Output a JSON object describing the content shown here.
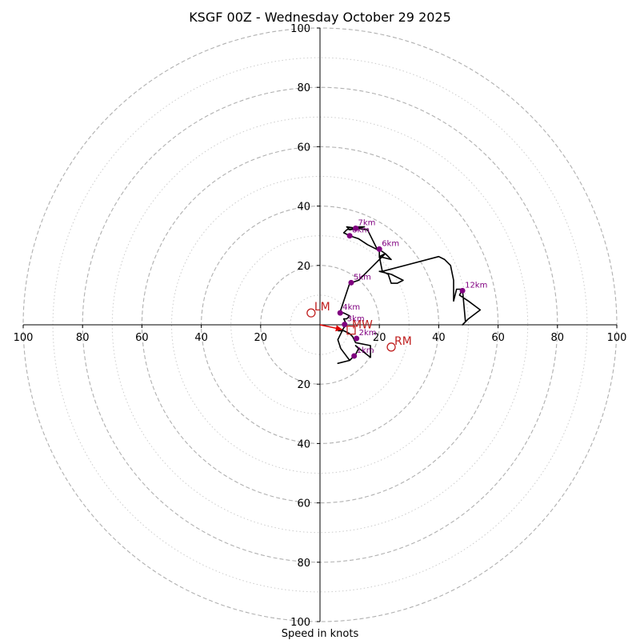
{
  "chart_data": {
    "type": "hodograph",
    "title": "KSGF 00Z - Wednesday October 29 2025",
    "xlabel": "Speed in knots",
    "units": "knots",
    "range": [
      -100,
      100
    ],
    "ring_major": [
      20,
      40,
      60,
      80,
      100
    ],
    "ring_minor": [
      10,
      30,
      50,
      70,
      90
    ],
    "x_ticks": [
      {
        "value": -100,
        "label": "100"
      },
      {
        "value": -80,
        "label": "80"
      },
      {
        "value": -60,
        "label": "60"
      },
      {
        "value": -40,
        "label": "40"
      },
      {
        "value": -20,
        "label": "20"
      },
      {
        "value": 20,
        "label": "20"
      },
      {
        "value": 40,
        "label": "40"
      },
      {
        "value": 60,
        "label": "60"
      },
      {
        "value": 80,
        "label": "80"
      },
      {
        "value": 100,
        "label": "100"
      }
    ],
    "y_ticks": [
      {
        "value": 100,
        "label": "100"
      },
      {
        "value": 80,
        "label": "80"
      },
      {
        "value": 60,
        "label": "60"
      },
      {
        "value": 40,
        "label": "40"
      },
      {
        "value": 20,
        "label": "20"
      },
      {
        "value": -20,
        "label": "20"
      },
      {
        "value": -40,
        "label": "40"
      },
      {
        "value": -60,
        "label": "60"
      },
      {
        "value": -80,
        "label": "80"
      },
      {
        "value": -100,
        "label": "100"
      }
    ],
    "hodograph_trace": [
      [
        6,
        -2
      ],
      [
        8,
        -2
      ],
      [
        10,
        -3
      ],
      [
        11,
        -4
      ],
      [
        12,
        -6
      ],
      [
        17,
        -7
      ],
      [
        17,
        -8
      ],
      [
        17,
        -11
      ],
      [
        12,
        -7
      ],
      [
        13,
        -8
      ],
      [
        12,
        -10
      ],
      [
        11,
        -11
      ],
      [
        10,
        -12
      ],
      [
        6,
        -13
      ],
      [
        10,
        -12
      ],
      [
        7,
        -8
      ],
      [
        6,
        -5
      ],
      [
        7,
        -3
      ],
      [
        8,
        -1
      ],
      [
        9,
        0
      ],
      [
        8,
        2
      ],
      [
        9,
        2
      ],
      [
        10,
        3
      ],
      [
        8,
        4
      ],
      [
        7,
        4
      ],
      [
        7,
        5
      ],
      [
        8,
        8
      ],
      [
        10,
        14
      ],
      [
        13,
        15
      ],
      [
        18,
        20
      ],
      [
        22,
        24
      ],
      [
        20,
        23
      ],
      [
        20,
        25
      ],
      [
        16,
        27
      ],
      [
        13,
        29
      ],
      [
        10,
        30
      ],
      [
        8,
        31
      ],
      [
        9,
        32
      ],
      [
        12,
        33
      ],
      [
        15,
        33
      ],
      [
        10,
        32
      ],
      [
        9,
        33
      ],
      [
        16,
        32
      ],
      [
        19,
        26
      ],
      [
        22,
        24
      ],
      [
        24,
        22
      ],
      [
        20,
        23
      ],
      [
        21,
        18
      ],
      [
        23,
        17
      ],
      [
        24,
        14
      ],
      [
        26,
        14
      ],
      [
        28,
        15
      ],
      [
        24,
        17
      ],
      [
        20,
        18
      ],
      [
        21,
        18
      ],
      [
        40,
        23
      ],
      [
        42,
        22
      ],
      [
        44,
        20
      ],
      [
        45,
        15
      ],
      [
        45,
        8
      ],
      [
        46,
        12
      ],
      [
        48,
        12
      ],
      [
        47,
        10
      ],
      [
        50,
        8
      ],
      [
        54,
        5
      ],
      [
        50,
        2
      ],
      [
        48,
        0
      ],
      [
        49,
        1
      ],
      [
        48,
        12
      ]
    ],
    "height_markers": [
      {
        "label": "1km",
        "u": 11.5,
        "v": -10.5
      },
      {
        "label": "2km",
        "u": 12.3,
        "v": -4.6
      },
      {
        "label": "3km",
        "u": 8.3,
        "v": 0.1
      },
      {
        "label": "4km",
        "u": 6.8,
        "v": 4.0
      },
      {
        "label": "5km",
        "u": 10.5,
        "v": 14.2
      },
      {
        "label": "6km",
        "u": 20.0,
        "v": 25.5
      },
      {
        "label": "7km",
        "u": 12.0,
        "v": 32.5
      },
      {
        "label": "8km",
        "u": 10.0,
        "v": 30.0
      },
      {
        "label": "12km",
        "u": 48.0,
        "v": 11.5
      }
    ],
    "storm_motion": {
      "RM": {
        "label": "RM",
        "u": 24.0,
        "v": -7.5
      },
      "LM": {
        "label": "LM",
        "u": -3.0,
        "v": 4.0
      },
      "MW": {
        "label": "MW",
        "u": 10.5,
        "v": -1.8
      }
    },
    "shear_vector": {
      "from": [
        0,
        0
      ],
      "to": [
        7.5,
        -1.6
      ]
    },
    "colors": {
      "ring": "#b0b0b0",
      "ring_minor": "#cccccc",
      "trace": "#000000",
      "marker": "#800080",
      "motion": "#c02020",
      "shear": "#dd0000"
    }
  }
}
